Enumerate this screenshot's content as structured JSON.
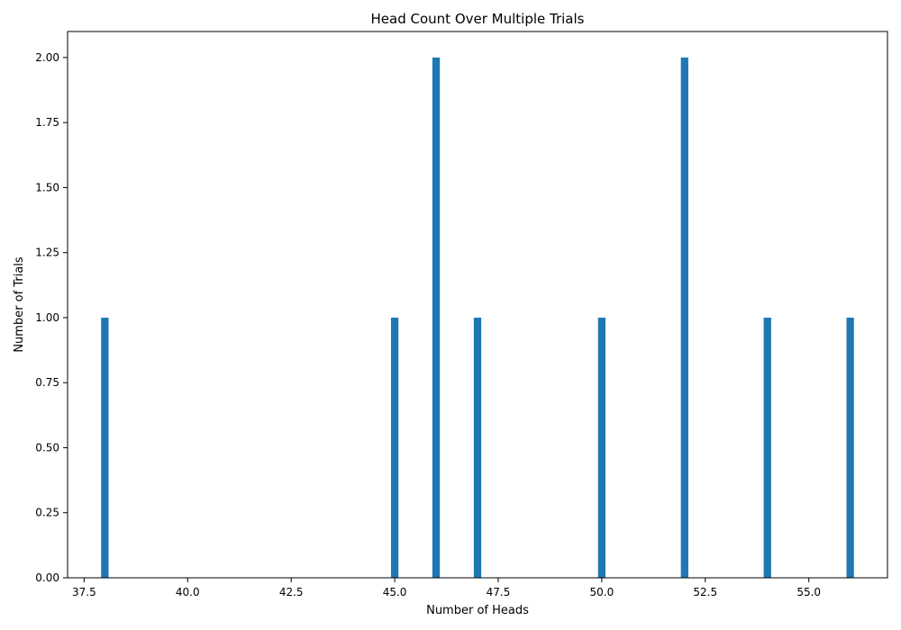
{
  "chart_data": {
    "type": "bar",
    "title": "Head Count Over Multiple Trials",
    "xlabel": "Number of Heads",
    "ylabel": "Number of Trials",
    "x": [
      38,
      45,
      46,
      47,
      50,
      52,
      54,
      56
    ],
    "values": [
      1,
      1,
      2,
      1,
      1,
      2,
      1,
      1
    ],
    "bar_color": "#1f77b4",
    "xlim": [
      37.1,
      56.9
    ],
    "ylim": [
      0,
      2.1
    ],
    "bar_width": 0.18,
    "xticks": [
      37.5,
      40.0,
      42.5,
      45.0,
      47.5,
      50.0,
      52.5,
      55.0
    ],
    "xtick_labels": [
      "37.5",
      "40.0",
      "42.5",
      "45.0",
      "47.5",
      "50.0",
      "52.5",
      "55.0"
    ],
    "yticks": [
      0,
      0.25,
      0.5,
      0.75,
      1.0,
      1.25,
      1.5,
      1.75,
      2.0
    ],
    "ytick_labels": [
      "0.00",
      "0.25",
      "0.50",
      "0.75",
      "1.00",
      "1.25",
      "1.50",
      "1.75",
      "2.00"
    ],
    "grid": false,
    "legend": "none"
  }
}
